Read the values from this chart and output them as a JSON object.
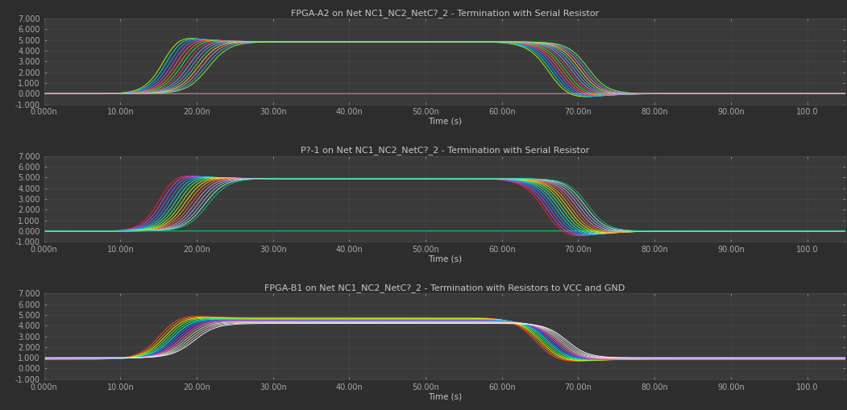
{
  "background_color": "#2d2d2d",
  "axes_bg_color": "#3a3a3a",
  "grid_color": "#4a4a4a",
  "text_color": "#c8c8c8",
  "tick_color": "#aaaaaa",
  "subplot_titles": [
    "FPGA-A2 on Net NC1_NC2_NetC?_2 - Termination with Serial Resistor",
    "P?-1 on Net NC1_NC2_NetC?_2 - Termination with Serial Resistor",
    "FPGA-B1 on Net NC1_NC2_NetC?_2 - Termination with Resistors to VCC and GND"
  ],
  "xlabel": "Time (s)",
  "ylim": [
    -1.0,
    7.0
  ],
  "yticks": [
    -1.0,
    0.0,
    1.0,
    2.0,
    3.0,
    4.0,
    5.0,
    6.0,
    7.0
  ],
  "xtick_labels": [
    "0.000n",
    "10.00n",
    "20.00n",
    "30.00n",
    "40.00n",
    "50.00n",
    "60.00n",
    "70.00n",
    "80.00n",
    "90.00n",
    "100.0"
  ],
  "xtick_values": [
    0,
    1e-08,
    2e-08,
    3e-08,
    4e-08,
    5e-08,
    6e-08,
    7e-08,
    8e-08,
    9e-08,
    1e-07
  ],
  "xlim": [
    0,
    1.05e-07
  ],
  "title_fontsize": 8.0,
  "tick_fontsize": 7,
  "label_fontsize": 7.5
}
